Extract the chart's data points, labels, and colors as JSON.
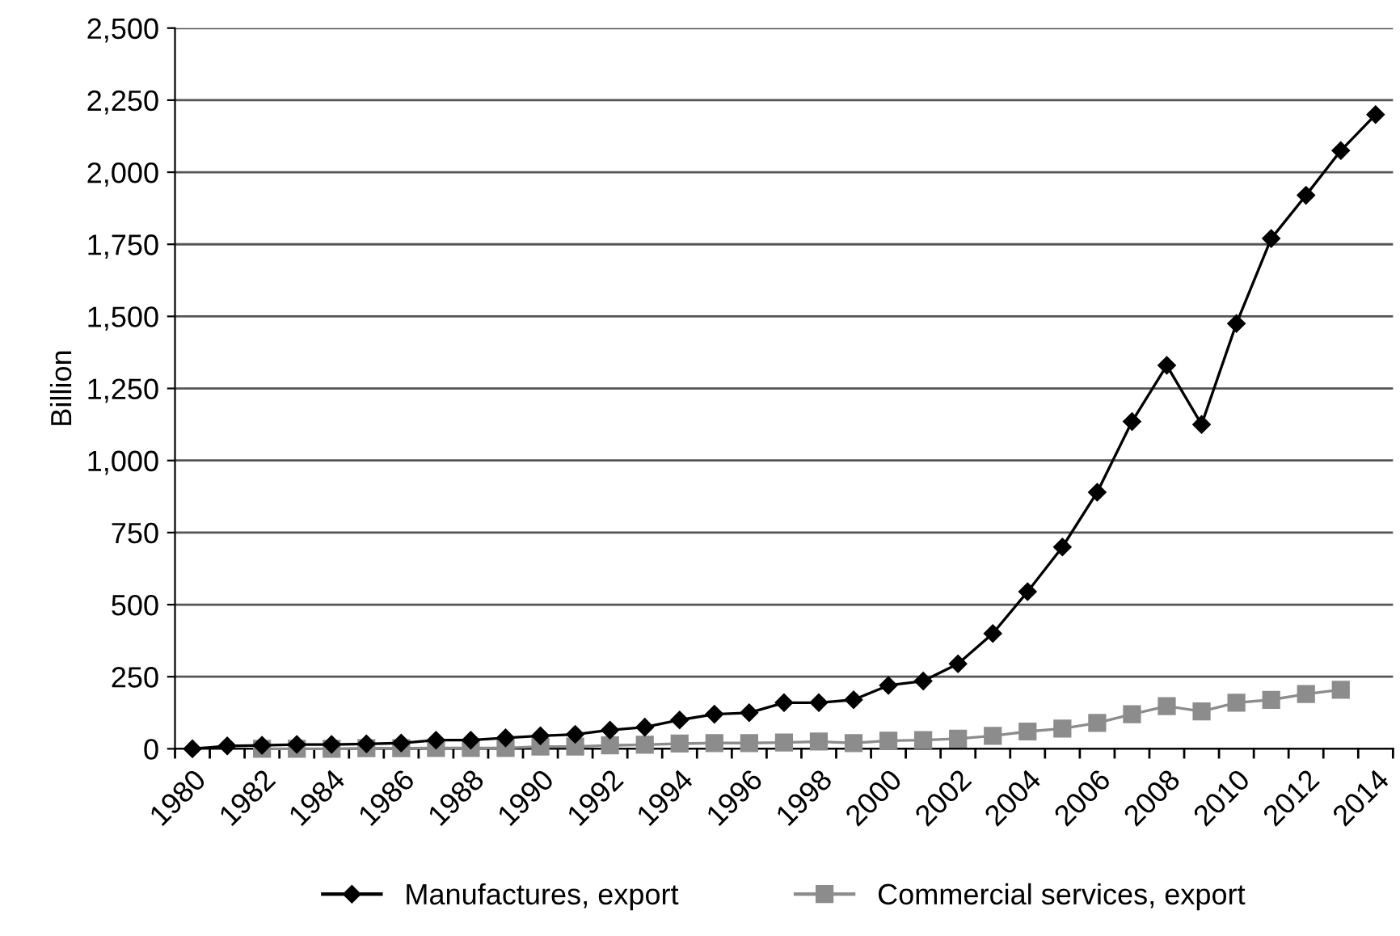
{
  "chart_data": {
    "type": "line",
    "ylabel": "Billion",
    "categories": [
      "1980",
      null,
      "1982",
      null,
      "1984",
      null,
      "1986",
      null,
      "1988",
      null,
      "1990",
      null,
      "1992",
      null,
      "1994",
      null,
      "1996",
      null,
      "1998",
      null,
      "2000",
      null,
      "2002",
      null,
      "2004",
      null,
      "2006",
      null,
      "2008",
      null,
      "2010",
      null,
      "2012",
      null,
      "2014"
    ],
    "series": [
      {
        "name": "Manufactures, export",
        "color": "#000000",
        "marker": "diamond",
        "values": [
          0,
          10,
          12,
          15,
          15,
          17,
          20,
          30,
          30,
          38,
          45,
          50,
          65,
          75,
          100,
          120,
          125,
          160,
          160,
          170,
          220,
          235,
          295,
          400,
          545,
          700,
          890,
          1135,
          1330,
          1125,
          1475,
          1770,
          1920,
          2075,
          2200
        ]
      },
      {
        "name": "Commercial services, export",
        "color": "#8c8c8c",
        "marker": "square",
        "values": [
          null,
          null,
          0,
          0,
          0,
          2,
          2,
          3,
          3,
          3,
          8,
          8,
          12,
          14,
          18,
          20,
          20,
          22,
          25,
          20,
          28,
          30,
          35,
          45,
          60,
          70,
          90,
          120,
          148,
          130,
          160,
          170,
          190,
          205,
          null
        ]
      }
    ],
    "ylim": [
      0,
      2500
    ],
    "yticks": [
      {
        "value": 0,
        "label": "0"
      },
      {
        "value": 250,
        "label": "250"
      },
      {
        "value": 500,
        "label": "500"
      },
      {
        "value": 750,
        "label": "750"
      },
      {
        "value": 1000,
        "label": "1,000"
      },
      {
        "value": 1250,
        "label": "1,250"
      },
      {
        "value": 1500,
        "label": "1,500"
      },
      {
        "value": 1750,
        "label": "1,750"
      },
      {
        "value": 2000,
        "label": "2,000"
      },
      {
        "value": 2250,
        "label": "2,250"
      },
      {
        "value": 2500,
        "label": "2,500"
      }
    ],
    "grid": "y",
    "legend": "bottom",
    "line_style": "solid"
  }
}
